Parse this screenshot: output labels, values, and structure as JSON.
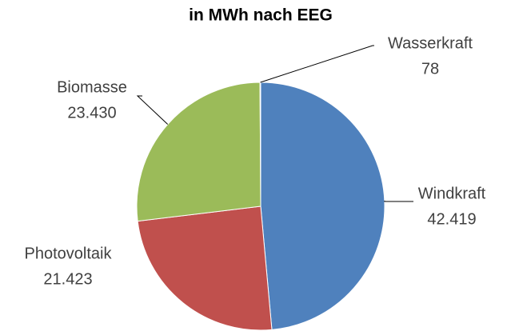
{
  "chart_data": {
    "type": "pie",
    "title": "in MWh nach EEG",
    "categories": [
      "Windkraft",
      "Photovoltaik",
      "Biomasse",
      "Wasserkraft"
    ],
    "values": [
      42419,
      21423,
      23430,
      78
    ],
    "value_labels": [
      "42.419",
      "21.423",
      "23.430",
      "78"
    ],
    "colors": [
      "#4f81bd",
      "#c0504d",
      "#9bbb59",
      "#8064a2"
    ]
  }
}
